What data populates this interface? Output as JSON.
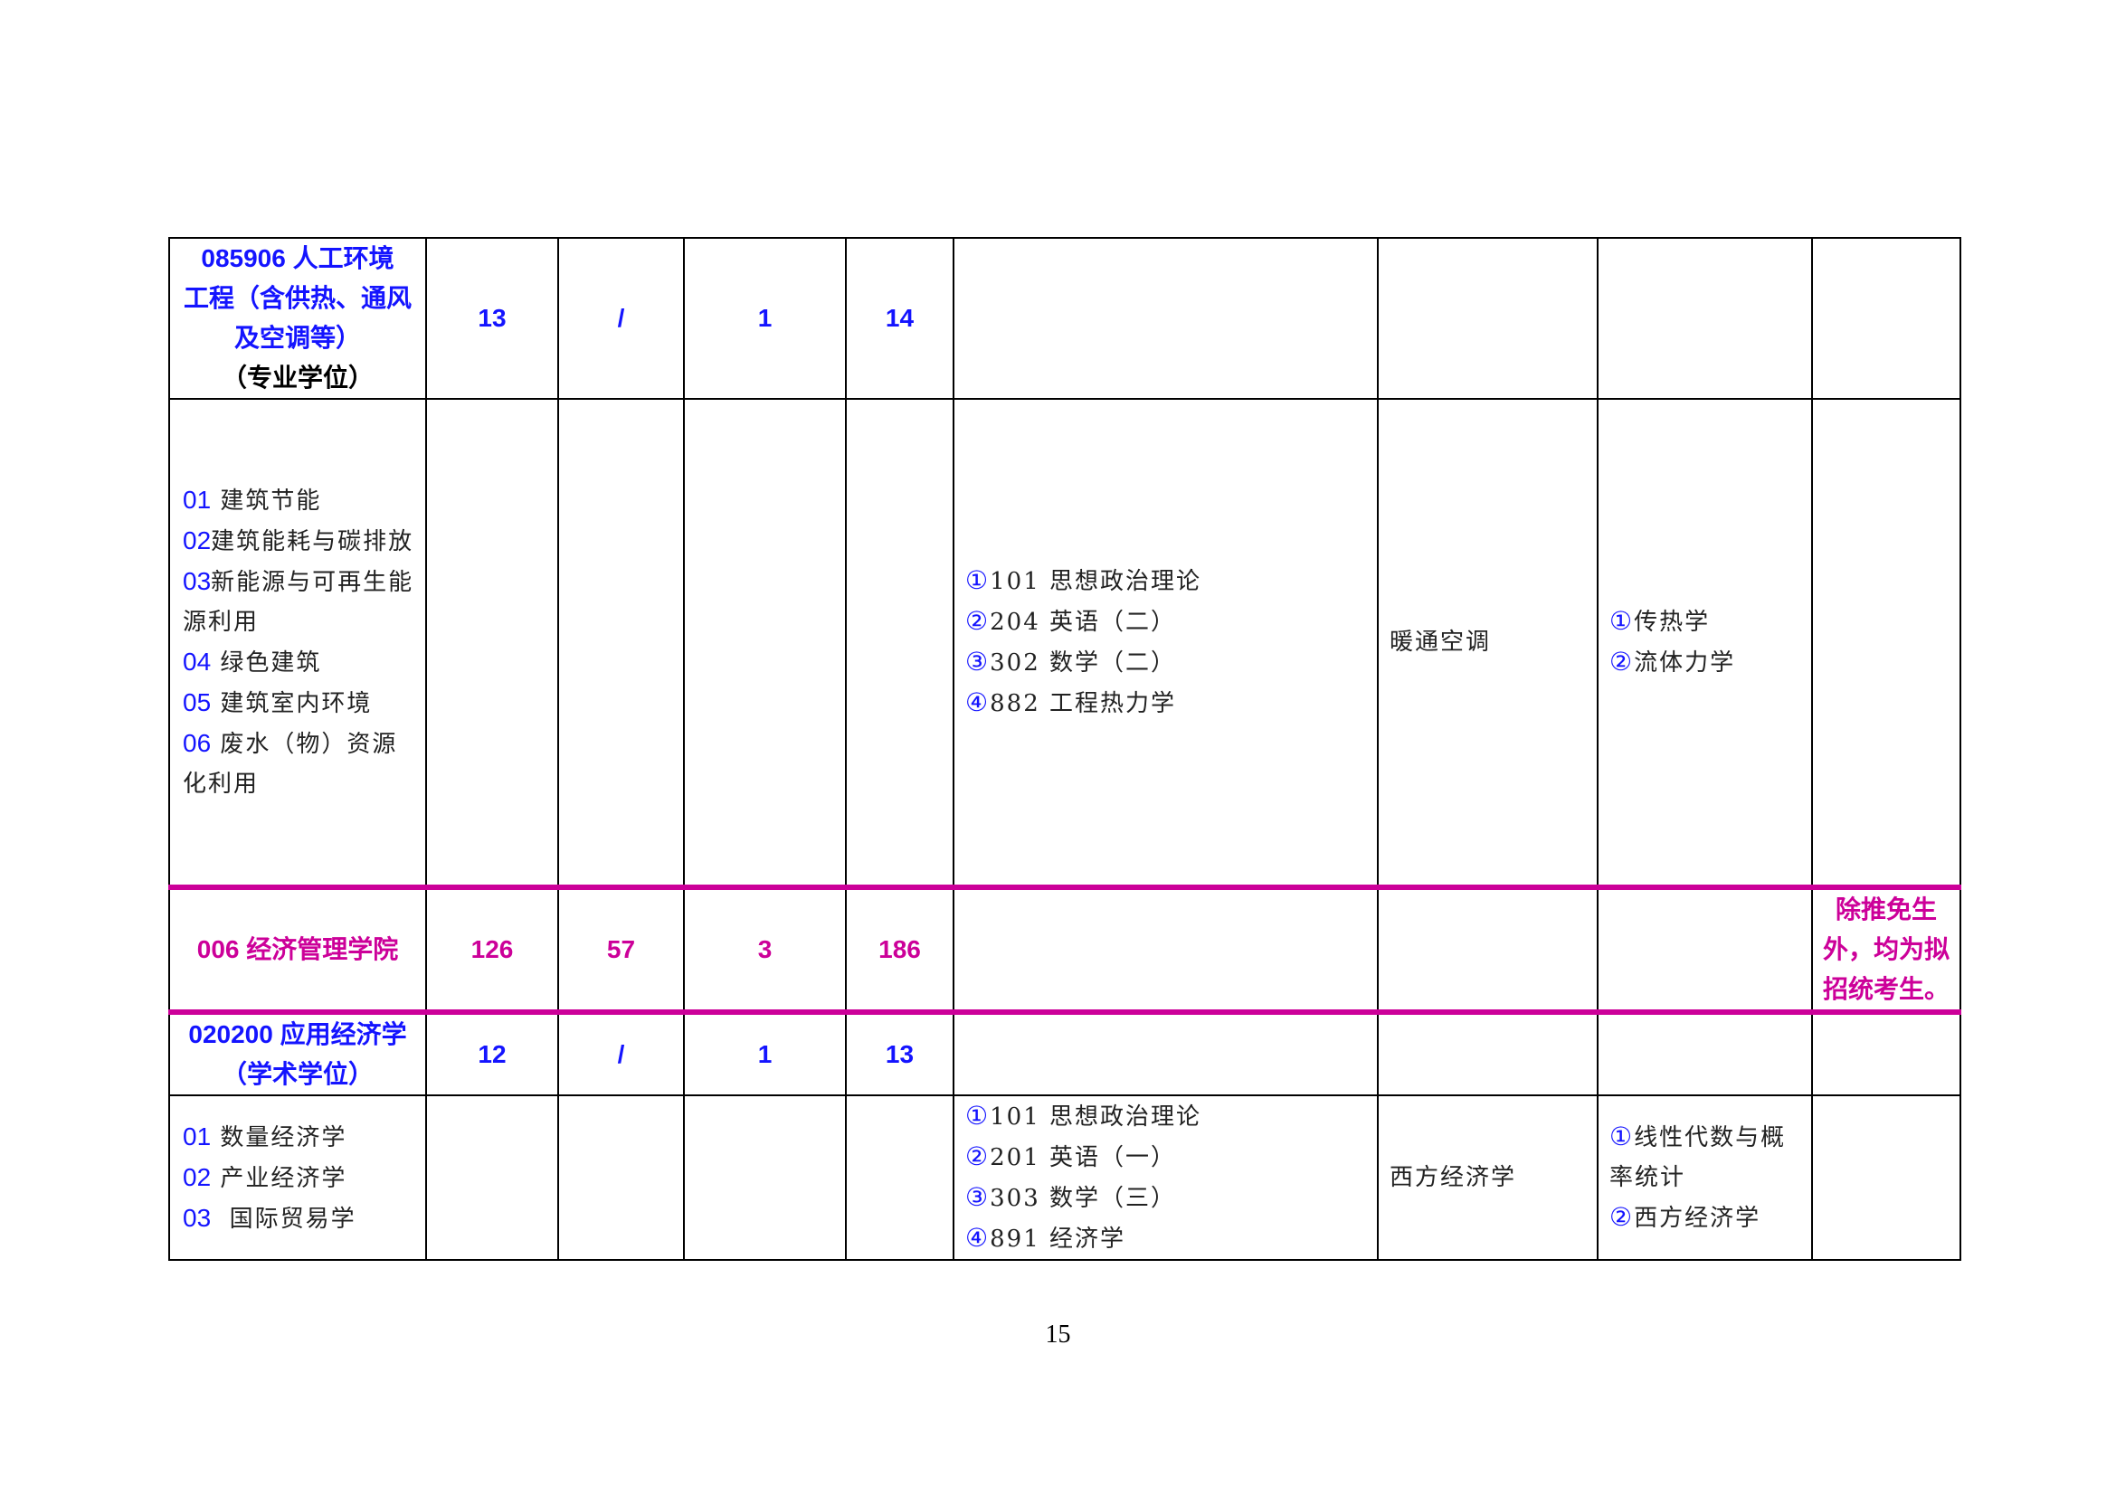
{
  "rows": [
    {
      "title_lines": [
        "085906  人工环境",
        "工程（含供热、通风",
        "及空调等）"
      ],
      "title_suffix": "（专业学位）",
      "col1": "13",
      "col2": "/",
      "col3": "1",
      "col4": "14"
    },
    {
      "directions": [
        {
          "code": "01",
          "text": " 建筑节能"
        },
        {
          "code": "02",
          "text": "建筑能耗与碳排放"
        },
        {
          "code": "03",
          "text": "新能源与可再生能源利用"
        },
        {
          "code": "04",
          "text": " 绿色建筑"
        },
        {
          "code": "05",
          "text": " 建筑室内环境"
        },
        {
          "code": "06",
          "text": " 废水（物）资源化利用"
        }
      ],
      "exams": [
        {
          "mark": "①",
          "text": "101 思想政治理论"
        },
        {
          "mark": "②",
          "text": "204 英语（二）"
        },
        {
          "mark": "③",
          "text": "302 数学（二）"
        },
        {
          "mark": "④",
          "text": "882 工程热力学"
        }
      ],
      "retest": "暖通空调",
      "equivalent": [
        {
          "mark": "①",
          "text": "传热学"
        },
        {
          "mark": "②",
          "text": "流体力学"
        }
      ]
    },
    {
      "title": "006  经济管理学院",
      "col1": "126",
      "col2": "57",
      "col3": "3",
      "col4": "186",
      "note": "除推免生外，均为拟招统考生。"
    },
    {
      "title": "020200  应用经济学（学术学位）",
      "col1": "12",
      "col2": "/",
      "col3": "1",
      "col4": "13"
    },
    {
      "directions": [
        {
          "code": "01",
          "text": " 数量经济学"
        },
        {
          "code": "02",
          "text": " 产业经济学"
        },
        {
          "code": "03",
          "text": "  国际贸易学"
        }
      ],
      "exams": [
        {
          "mark": "①",
          "text": "101 思想政治理论"
        },
        {
          "mark": "②",
          "text": "201 英语（一）"
        },
        {
          "mark": "③",
          "text": "303 数学（三）"
        },
        {
          "mark": "④",
          "text": "891 经济学"
        }
      ],
      "retest": "西方经济学",
      "equivalent": [
        {
          "mark": "①",
          "text": "线性代数与概率统计"
        },
        {
          "mark": "②",
          "text": "西方经济学"
        }
      ]
    }
  ],
  "page_number": "15",
  "colors": {
    "blue": "#1414ff",
    "magenta": "#cc0099"
  }
}
